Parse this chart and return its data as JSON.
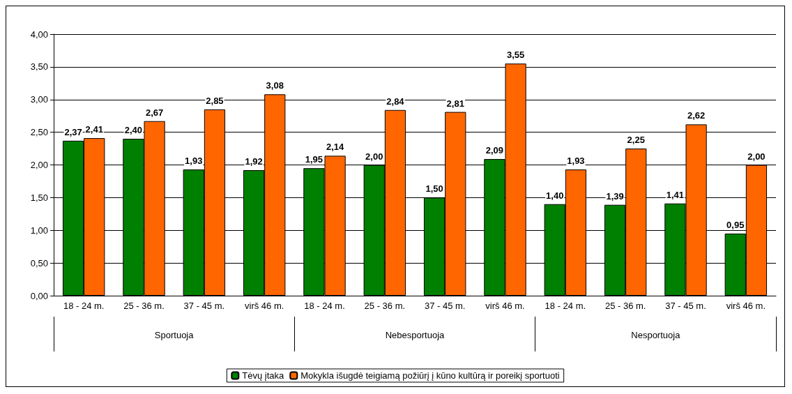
{
  "chart_data": {
    "type": "bar",
    "categories": [
      "18 - 24 m.",
      "25 - 36 m.",
      "37 - 45 m.",
      "virš 46 m.",
      "18 - 24 m.",
      "25 - 36 m.",
      "37 - 45 m.",
      "virš 46 m.",
      "18 - 24 m.",
      "25 - 36 m.",
      "37 - 45 m.",
      "virš 46 m."
    ],
    "annotations": [
      "Sportuoja",
      "Nebesportuoja",
      "Nesportuoja"
    ],
    "series": [
      {
        "name": "Tėvų įtaka",
        "color": "#008000",
        "values": [
          2.37,
          2.4,
          1.93,
          1.92,
          1.95,
          2.0,
          1.5,
          2.09,
          1.4,
          1.39,
          1.41,
          0.95
        ],
        "value_labels": [
          "2,37",
          "2,40",
          "1,93",
          "1,92",
          "1,95",
          "2,00",
          "1,50",
          "2,09",
          "1,40",
          "1,39",
          "1,41",
          "0,95"
        ]
      },
      {
        "name": "Mokykla išugdė teigiamą požiūrį į kūno kultūrą ir poreikį sportuoti",
        "color": "#ff6600",
        "values": [
          2.41,
          2.67,
          2.85,
          3.08,
          2.14,
          2.84,
          2.81,
          3.55,
          1.93,
          2.25,
          2.62,
          2.0
        ],
        "value_labels": [
          "2,41",
          "2,67",
          "2,85",
          "3,08",
          "2,14",
          "2,84",
          "2,81",
          "3,55",
          "1,93",
          "2,25",
          "2,62",
          "2,00"
        ]
      }
    ],
    "ylim": [
      0,
      4
    ],
    "yticks": [
      {
        "value": 0,
        "label": "0,00"
      },
      {
        "value": 0.5,
        "label": "0,50"
      },
      {
        "value": 1,
        "label": "1,00"
      },
      {
        "value": 1.5,
        "label": "1,50"
      },
      {
        "value": 2,
        "label": "2,00"
      },
      {
        "value": 2.5,
        "label": "2,50"
      },
      {
        "value": 3,
        "label": "3,00"
      },
      {
        "value": 3.5,
        "label": "3,50"
      },
      {
        "value": 4,
        "label": "4,00"
      }
    ],
    "grid": "y",
    "legend": "bottom"
  }
}
